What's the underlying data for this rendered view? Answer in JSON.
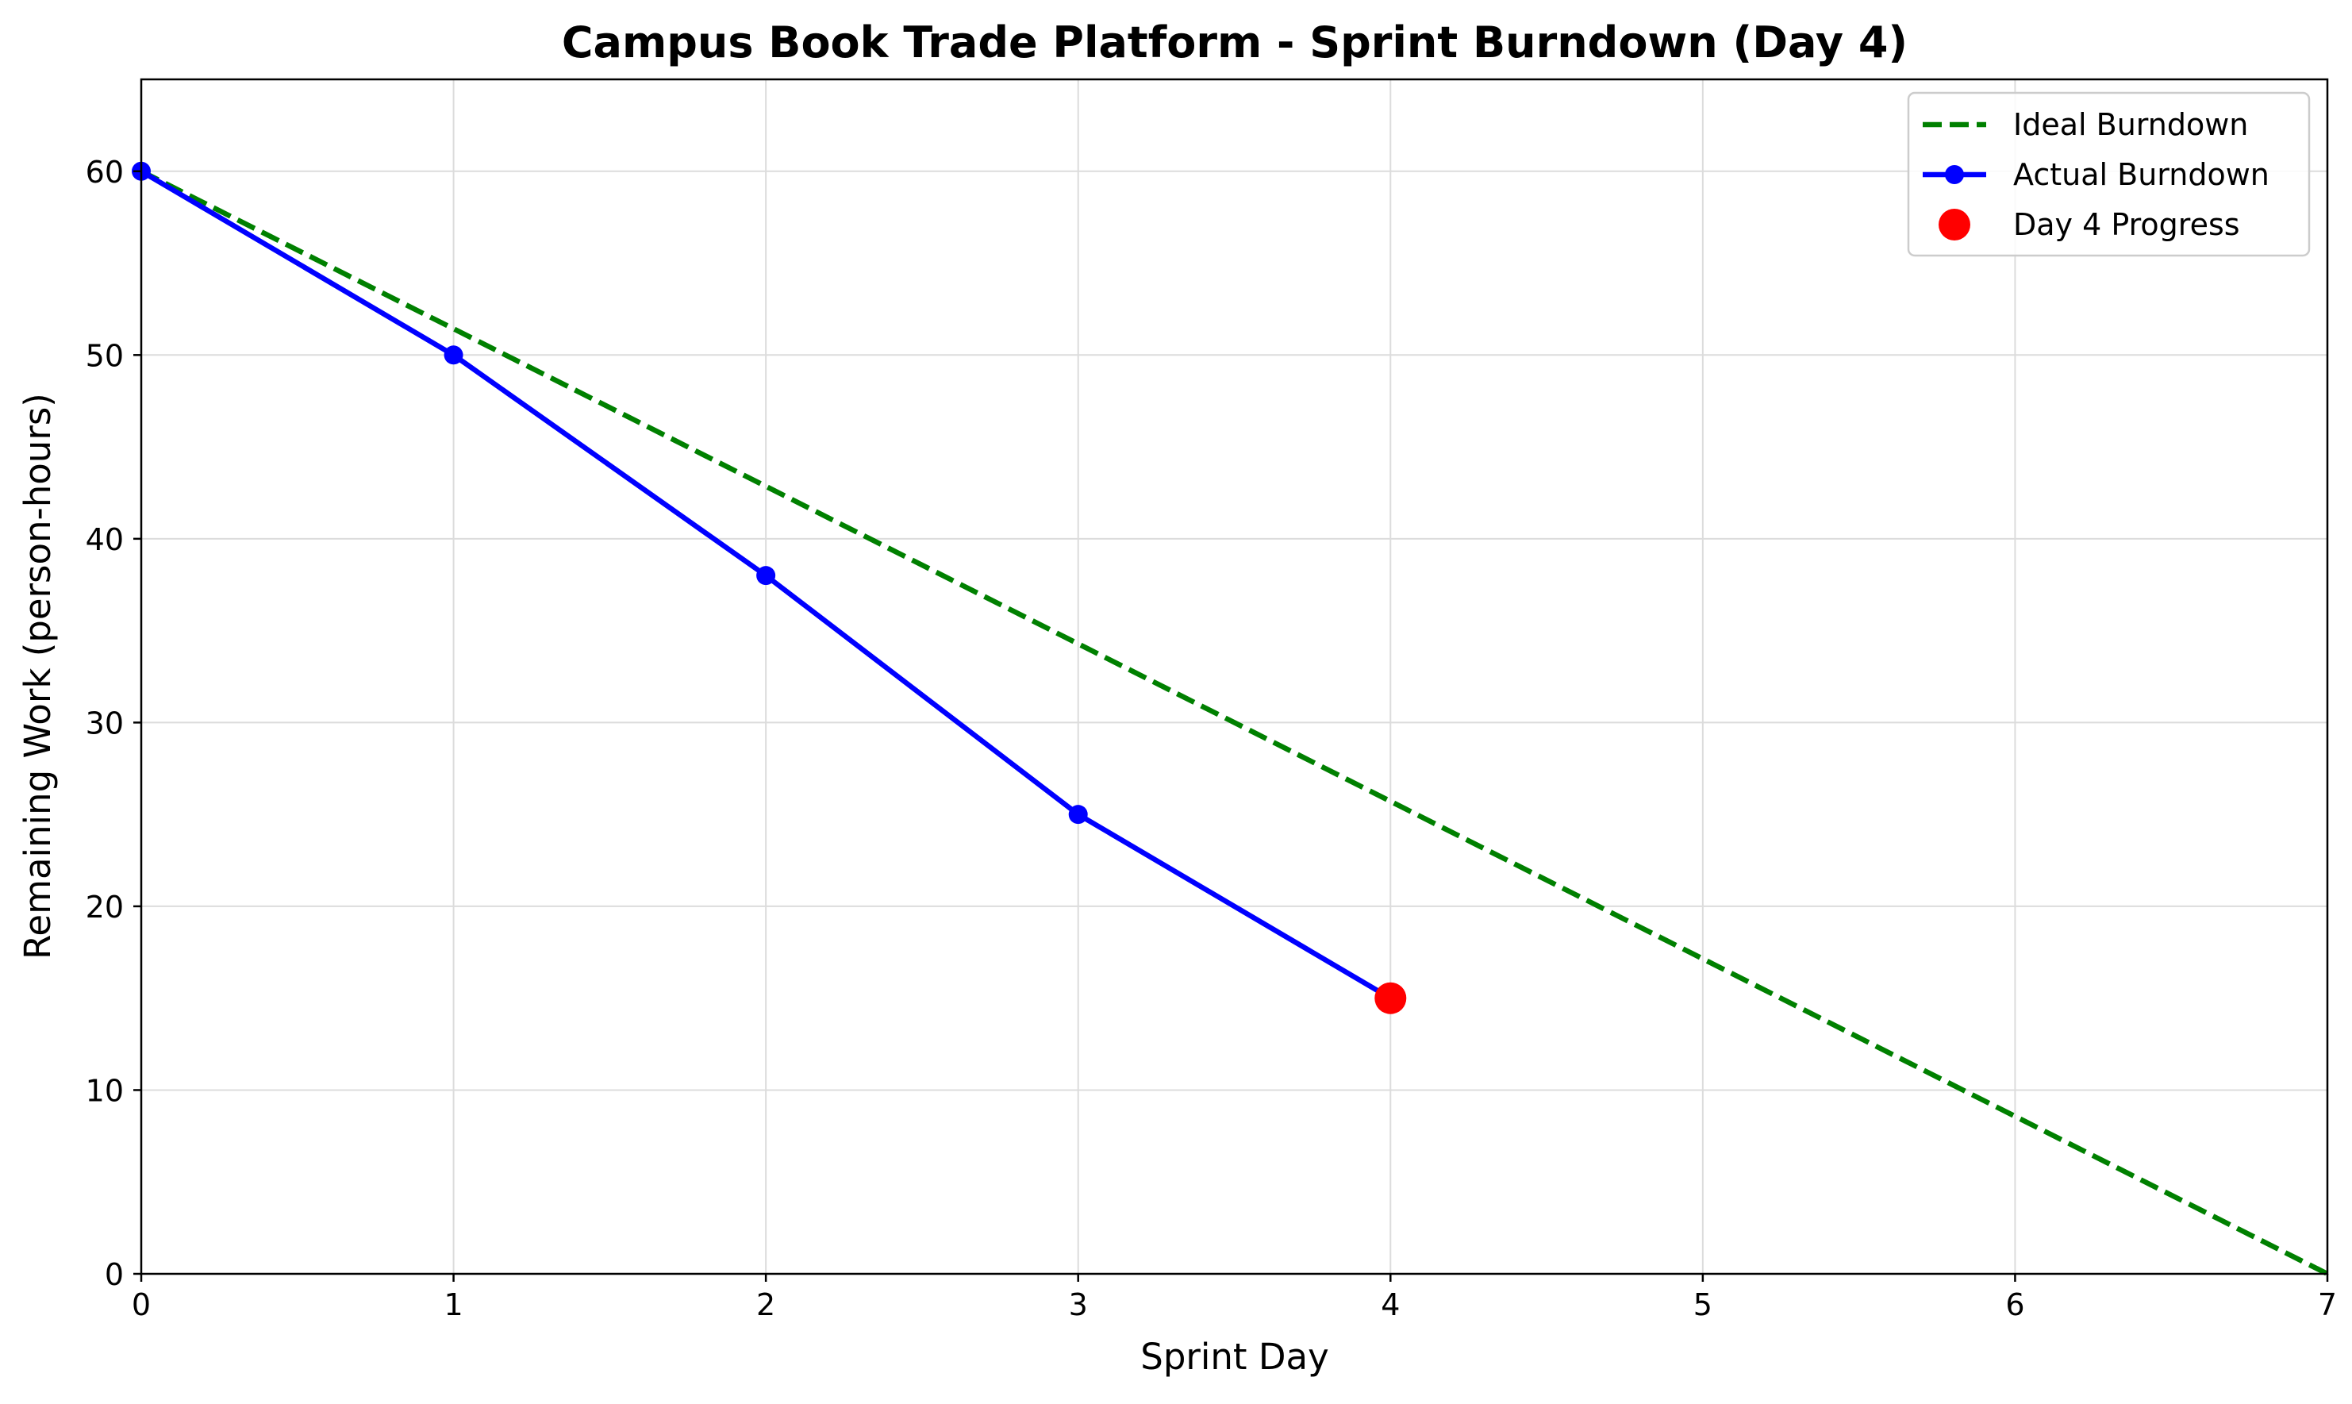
{
  "chart_data": {
    "type": "line",
    "title": "Campus Book Trade Platform - Sprint Burndown (Day 4)",
    "xlabel": "Sprint Day",
    "ylabel": "Remaining Work (person-hours)",
    "xlim": [
      0,
      7
    ],
    "ylim": [
      0,
      65
    ],
    "x_ticks": [
      0,
      1,
      2,
      3,
      4,
      5,
      6,
      7
    ],
    "y_ticks": [
      0,
      10,
      20,
      30,
      40,
      50,
      60
    ],
    "grid": true,
    "legend_position": "top-right",
    "series": [
      {
        "name": "Ideal Burndown",
        "style": "dashed",
        "color": "#008000",
        "x": [
          0,
          7
        ],
        "y": [
          60,
          0
        ]
      },
      {
        "name": "Actual Burndown",
        "style": "solid-with-markers",
        "color": "#0000ff",
        "x": [
          0,
          1,
          2,
          3,
          4
        ],
        "y": [
          60,
          50,
          38,
          25,
          15
        ]
      },
      {
        "name": "Day 4 Progress",
        "style": "point",
        "color": "#ff0000",
        "x": [
          4
        ],
        "y": [
          15
        ]
      }
    ]
  }
}
